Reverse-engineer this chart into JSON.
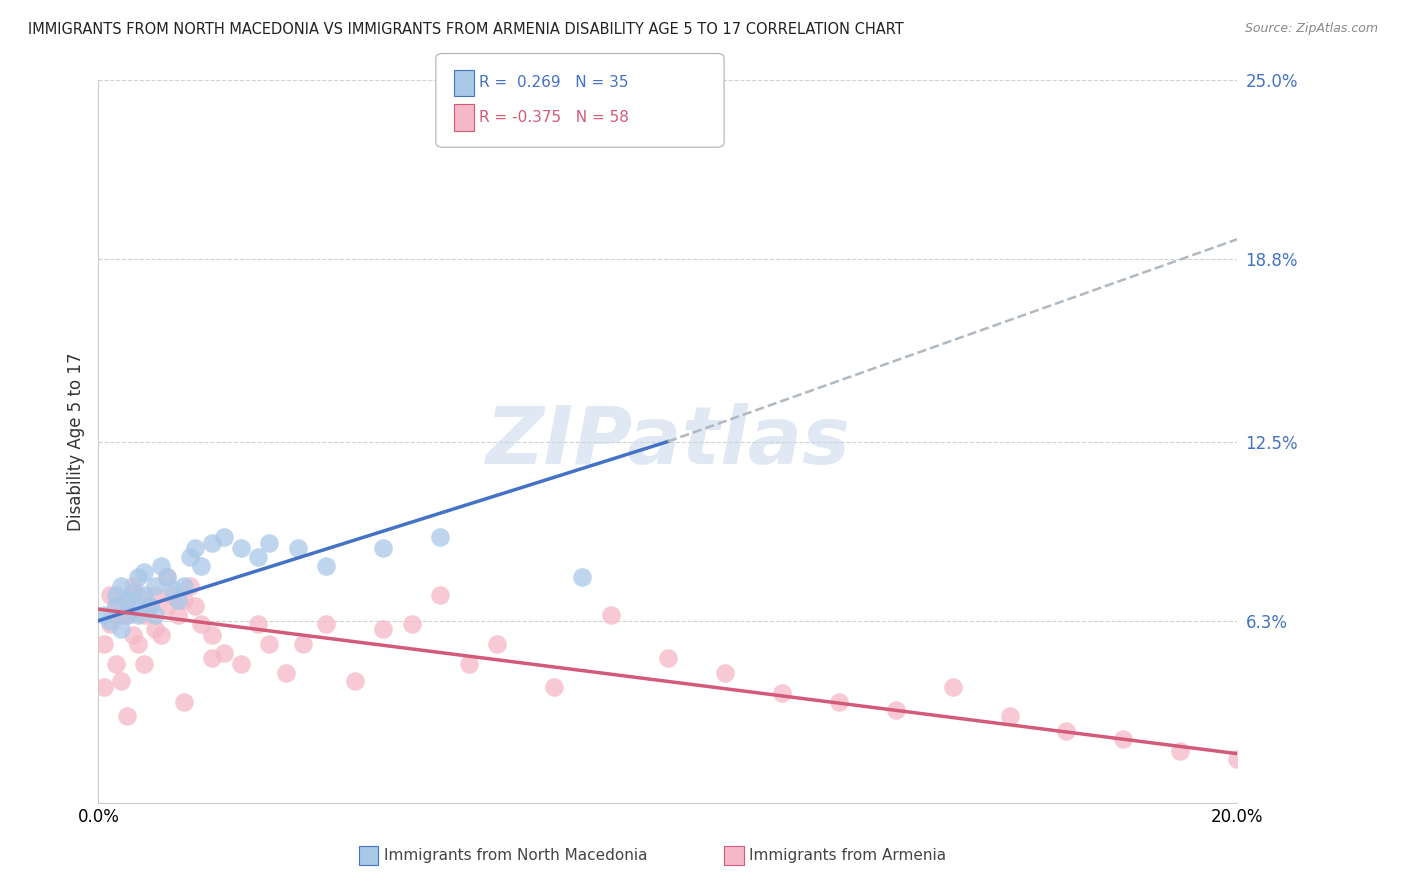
{
  "title": "IMMIGRANTS FROM NORTH MACEDONIA VS IMMIGRANTS FROM ARMENIA DISABILITY AGE 5 TO 17 CORRELATION CHART",
  "source": "Source: ZipAtlas.com",
  "ylabel": "Disability Age 5 to 17",
  "xlim": [
    0.0,
    0.2
  ],
  "ylim": [
    0.0,
    0.25
  ],
  "yticks": [
    0.0,
    0.063,
    0.125,
    0.188,
    0.25
  ],
  "ytick_labels": [
    "",
    "6.3%",
    "12.5%",
    "18.8%",
    "25.0%"
  ],
  "xticks": [
    0.0,
    0.05,
    0.1,
    0.15,
    0.2
  ],
  "xtick_labels": [
    "0.0%",
    "",
    "",
    "",
    "20.0%"
  ],
  "color_blue": "#a8c8e8",
  "color_pink": "#f4b8c8",
  "line_blue": "#4472c4",
  "line_pink": "#d45a7a",
  "line_dashed": "#b0b8c0",
  "ytick_color": "#4472c4",
  "watermark_color": "#c8d8ea",
  "blue_scatter_x": [
    0.001,
    0.002,
    0.003,
    0.003,
    0.004,
    0.004,
    0.005,
    0.005,
    0.006,
    0.006,
    0.007,
    0.007,
    0.008,
    0.008,
    0.009,
    0.01,
    0.01,
    0.011,
    0.012,
    0.013,
    0.014,
    0.015,
    0.016,
    0.017,
    0.018,
    0.02,
    0.022,
    0.025,
    0.028,
    0.03,
    0.035,
    0.04,
    0.05,
    0.06,
    0.085
  ],
  "blue_scatter_y": [
    0.065,
    0.063,
    0.068,
    0.072,
    0.06,
    0.075,
    0.065,
    0.07,
    0.068,
    0.073,
    0.078,
    0.065,
    0.072,
    0.08,
    0.068,
    0.065,
    0.075,
    0.082,
    0.078,
    0.074,
    0.07,
    0.075,
    0.085,
    0.088,
    0.082,
    0.09,
    0.092,
    0.088,
    0.085,
    0.09,
    0.088,
    0.082,
    0.088,
    0.092,
    0.078
  ],
  "pink_scatter_x": [
    0.001,
    0.001,
    0.002,
    0.002,
    0.003,
    0.003,
    0.004,
    0.004,
    0.005,
    0.005,
    0.005,
    0.006,
    0.006,
    0.007,
    0.007,
    0.008,
    0.008,
    0.009,
    0.01,
    0.01,
    0.011,
    0.012,
    0.013,
    0.014,
    0.015,
    0.016,
    0.017,
    0.018,
    0.02,
    0.022,
    0.025,
    0.028,
    0.03,
    0.033,
    0.036,
    0.04,
    0.045,
    0.05,
    0.055,
    0.06,
    0.065,
    0.07,
    0.08,
    0.09,
    0.1,
    0.11,
    0.12,
    0.13,
    0.14,
    0.15,
    0.16,
    0.17,
    0.18,
    0.19,
    0.2,
    0.012,
    0.015,
    0.02
  ],
  "pink_scatter_y": [
    0.055,
    0.04,
    0.062,
    0.072,
    0.048,
    0.068,
    0.065,
    0.042,
    0.07,
    0.065,
    0.03,
    0.058,
    0.075,
    0.072,
    0.055,
    0.065,
    0.048,
    0.068,
    0.06,
    0.072,
    0.058,
    0.068,
    0.072,
    0.065,
    0.07,
    0.075,
    0.068,
    0.062,
    0.058,
    0.052,
    0.048,
    0.062,
    0.055,
    0.045,
    0.055,
    0.062,
    0.042,
    0.06,
    0.062,
    0.072,
    0.048,
    0.055,
    0.04,
    0.065,
    0.05,
    0.045,
    0.038,
    0.035,
    0.032,
    0.04,
    0.03,
    0.025,
    0.022,
    0.018,
    0.015,
    0.078,
    0.035,
    0.05
  ],
  "blue_solid_line": {
    "x0": 0.0,
    "x1": 0.1,
    "y0": 0.063,
    "y1": 0.125
  },
  "blue_dashed_line": {
    "x0": 0.1,
    "x1": 0.2,
    "y0": 0.125,
    "y1": 0.195
  },
  "pink_solid_line": {
    "x0": 0.0,
    "x1": 0.2,
    "y0": 0.067,
    "y1": 0.017
  },
  "legend_R1": "R =  0.269",
  "legend_N1": "N = 35",
  "legend_R2": "R = -0.375",
  "legend_N2": "N = 58",
  "bottom_label1": "Immigrants from North Macedonia",
  "bottom_label2": "Immigrants from Armenia"
}
